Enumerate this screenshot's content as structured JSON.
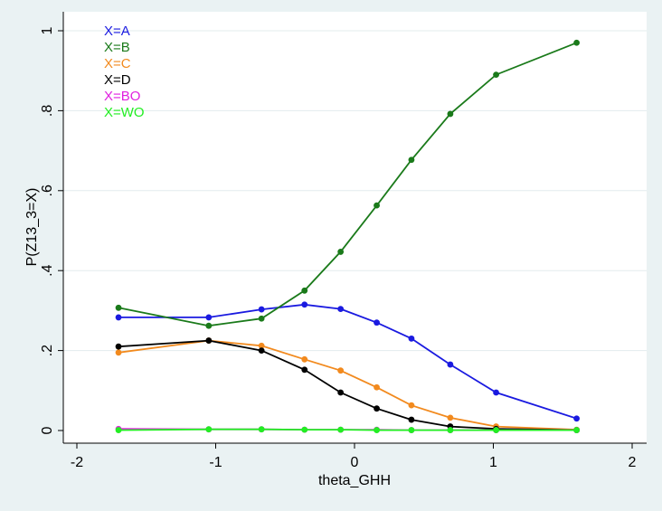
{
  "chart_data": {
    "type": "line",
    "title": "",
    "xlabel": "theta_GHH",
    "ylabel": "P(Z13_3=X)",
    "xlim": [
      -2,
      2
    ],
    "ylim": [
      0,
      1
    ],
    "xticks": [
      -2,
      -1,
      0,
      1,
      2
    ],
    "yticks": [
      0,
      0.2,
      0.4,
      0.6,
      0.8,
      1
    ],
    "xtick_labels": [
      "-2",
      "-1",
      "0",
      "1",
      "2"
    ],
    "ytick_labels": [
      "0",
      ".2",
      ".4",
      ".6",
      ".8",
      "1"
    ],
    "grid": true,
    "legend_position": "top-left",
    "x": [
      -1.7,
      -1.05,
      -0.67,
      -0.36,
      -0.1,
      0.16,
      0.41,
      0.69,
      1.02,
      1.6
    ],
    "series": [
      {
        "name": "X=A",
        "color": "#1a1ae0",
        "values": [
          0.283,
          0.283,
          0.303,
          0.315,
          0.304,
          0.27,
          0.23,
          0.165,
          0.095,
          0.03
        ]
      },
      {
        "name": "X=B",
        "color": "#1a7a1a",
        "values": [
          0.307,
          0.262,
          0.28,
          0.35,
          0.447,
          0.563,
          0.677,
          0.792,
          0.89,
          0.97
        ]
      },
      {
        "name": "X=C",
        "color": "#f28a1e",
        "values": [
          0.195,
          0.225,
          0.212,
          0.178,
          0.15,
          0.108,
          0.063,
          0.032,
          0.01,
          0.002
        ]
      },
      {
        "name": "X=D",
        "color": "#000000",
        "values": [
          0.21,
          0.225,
          0.2,
          0.152,
          0.095,
          0.055,
          0.027,
          0.01,
          0.004,
          0.001
        ]
      },
      {
        "name": "X=BO",
        "color": "#e020e0",
        "values": [
          0.004,
          0.003,
          0.003,
          0.002,
          0.002,
          0.002,
          0.001,
          0.001,
          0.001,
          0.001
        ]
      },
      {
        "name": "X=WO",
        "color": "#22ee22",
        "values": [
          0.001,
          0.003,
          0.003,
          0.002,
          0.002,
          0.001,
          0.001,
          0.001,
          0.001,
          0.001
        ]
      }
    ]
  }
}
